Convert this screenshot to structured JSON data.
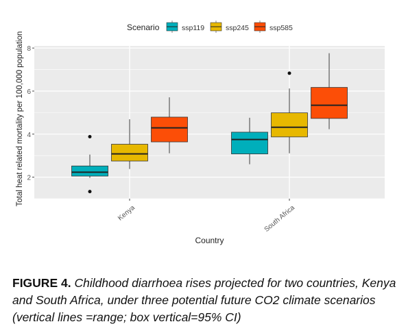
{
  "chart_data": {
    "type": "boxplot",
    "xlabel": "Country",
    "ylabel": "Total heat related mortality per 100,000 population",
    "categories": [
      "Kenya",
      "South Africa"
    ],
    "ylim": [
      1.0,
      8.1
    ],
    "yticks": [
      2,
      4,
      6,
      8
    ],
    "grid": true,
    "legend": {
      "title": "Scenario",
      "placement": "top"
    },
    "series": [
      {
        "name": "ssp119",
        "color": "#00AFBB",
        "boxes": [
          {
            "whisker_low": 1.97,
            "q1": 2.05,
            "median": 2.23,
            "q3": 2.52,
            "whisker_high": 3.05,
            "outliers": [
              3.88,
              1.33
            ]
          },
          {
            "whisker_low": 2.6,
            "q1": 3.08,
            "median": 3.75,
            "q3": 4.09,
            "whisker_high": 4.76,
            "outliers": []
          }
        ]
      },
      {
        "name": "ssp245",
        "color": "#E7B800",
        "boxes": [
          {
            "whisker_low": 2.38,
            "q1": 2.75,
            "median": 3.08,
            "q3": 3.53,
            "whisker_high": 4.69,
            "outliers": []
          },
          {
            "whisker_low": 3.11,
            "q1": 3.87,
            "median": 4.32,
            "q3": 4.99,
            "whisker_high": 6.12,
            "outliers": [
              6.83
            ]
          }
        ]
      },
      {
        "name": "ssp585",
        "color": "#FC4E07",
        "boxes": [
          {
            "whisker_low": 3.11,
            "q1": 3.64,
            "median": 4.29,
            "q3": 4.79,
            "whisker_high": 5.71,
            "outliers": []
          },
          {
            "whisker_low": 4.23,
            "q1": 4.73,
            "median": 5.34,
            "q3": 6.17,
            "whisker_high": 7.76,
            "outliers": []
          }
        ]
      }
    ]
  },
  "caption": {
    "label": "FIGURE 4.",
    "text": "Childhood diarrhoea rises projected for two countries, Kenya and South Africa, under three potential future CO2 climate scenarios (vertical lines =range; box vertical=95% CI)"
  }
}
